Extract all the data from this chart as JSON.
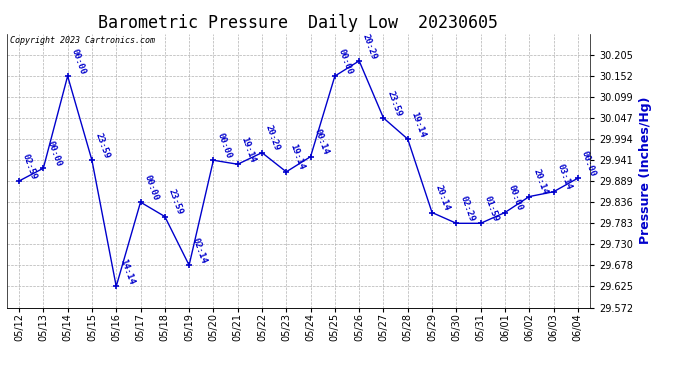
{
  "title": "Barometric Pressure  Daily Low  20230605",
  "ylabel": "Pressure (Inches/Hg)",
  "background_color": "#ffffff",
  "grid_color": "#aaaaaa",
  "line_color": "#0000cc",
  "label_color": "#0000cc",
  "copyright_text": "Copyright 2023 Cartronics.com",
  "dates": [
    "05/12",
    "05/13",
    "05/14",
    "05/15",
    "05/16",
    "05/17",
    "05/18",
    "05/19",
    "05/20",
    "05/21",
    "05/22",
    "05/23",
    "05/24",
    "05/25",
    "05/26",
    "05/27",
    "05/28",
    "05/29",
    "05/30",
    "05/31",
    "06/01",
    "06/02",
    "06/03",
    "06/04"
  ],
  "values": [
    29.889,
    29.921,
    30.152,
    29.941,
    29.625,
    29.836,
    29.8,
    29.678,
    29.941,
    29.931,
    29.96,
    29.912,
    29.95,
    30.152,
    30.19,
    30.047,
    29.994,
    29.81,
    29.783,
    29.783,
    29.81,
    29.85,
    29.862,
    29.896
  ],
  "time_labels": [
    "02:59",
    "00:00",
    "00:00",
    "23:59",
    "14:14",
    "00:00",
    "23:59",
    "02:14",
    "00:00",
    "19:14",
    "20:29",
    "19:14",
    "00:14",
    "00:00",
    "20:29",
    "23:59",
    "19:14",
    "20:14",
    "02:29",
    "01:59",
    "00:00",
    "20:14",
    "03:14",
    "00:00"
  ],
  "ylim_min": 29.572,
  "ylim_max": 30.258,
  "yticks": [
    29.572,
    29.625,
    29.678,
    29.73,
    29.783,
    29.836,
    29.889,
    29.941,
    29.994,
    30.047,
    30.099,
    30.152,
    30.205
  ],
  "title_fontsize": 12,
  "ylabel_fontsize": 9,
  "tick_fontsize": 7,
  "annotation_fontsize": 6.5
}
